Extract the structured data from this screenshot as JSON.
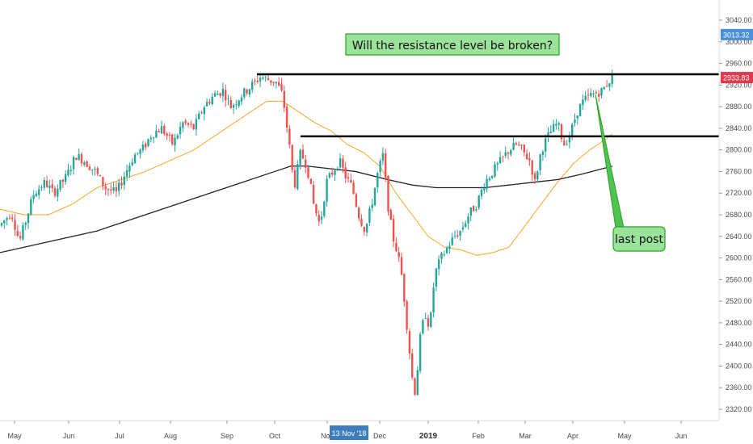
{
  "chart_data": {
    "type": "candlestick",
    "title": "",
    "ylim": [
      2290,
      3075
    ],
    "y_ticks": [
      2320,
      2360,
      2400,
      2440,
      2480,
      2520,
      2560,
      2600,
      2640,
      2680,
      2720,
      2760,
      2800,
      2840,
      2880,
      2920,
      2960,
      3000,
      3040
    ],
    "x_ticks": [
      "May",
      "Jun",
      "Jul",
      "Aug",
      "Sep",
      "Oct",
      "Nov",
      "Dec",
      "2019",
      "Feb",
      "Mar",
      "Apr",
      "May",
      "Jun"
    ],
    "crosshair_x_label": "13 Nov '18",
    "price_labels": [
      {
        "value": 3013.32,
        "text": "3013.32",
        "color": "#4a90d9"
      },
      {
        "value": 2933.83,
        "text": "2933.83",
        "color": "#e0394d"
      }
    ],
    "resistance_levels": [
      {
        "value": 2940,
        "start": "Sep 20"
      },
      {
        "value": 2825,
        "start": "Oct 15"
      }
    ],
    "annotations": [
      {
        "text": "Will the resistance level be broken?",
        "style": "green-box"
      },
      {
        "text": "last post",
        "style": "green-callout"
      }
    ],
    "series": [
      {
        "type": "ohlc",
        "color_up": "#26a69a",
        "color_down": "#ef5350"
      },
      {
        "type": "moving_average",
        "color": "#f5a623"
      },
      {
        "type": "moving_average",
        "color": "#222222"
      }
    ],
    "price_path": [
      [
        0,
        2660
      ],
      [
        14,
        2685
      ],
      [
        24,
        2630
      ],
      [
        34,
        2680
      ],
      [
        42,
        2720
      ],
      [
        56,
        2740
      ],
      [
        66,
        2720
      ],
      [
        82,
        2750
      ],
      [
        94,
        2790
      ],
      [
        104,
        2780
      ],
      [
        118,
        2760
      ],
      [
        130,
        2730
      ],
      [
        144,
        2720
      ],
      [
        156,
        2760
      ],
      [
        166,
        2790
      ],
      [
        176,
        2800
      ],
      [
        188,
        2830
      ],
      [
        200,
        2840
      ],
      [
        214,
        2810
      ],
      [
        226,
        2850
      ],
      [
        240,
        2840
      ],
      [
        252,
        2880
      ],
      [
        264,
        2900
      ],
      [
        276,
        2910
      ],
      [
        286,
        2880
      ],
      [
        298,
        2900
      ],
      [
        312,
        2920
      ],
      [
        322,
        2935
      ],
      [
        332,
        2930
      ],
      [
        342,
        2925
      ],
      [
        350,
        2900
      ],
      [
        358,
        2810
      ],
      [
        364,
        2730
      ],
      [
        372,
        2795
      ],
      [
        380,
        2770
      ],
      [
        388,
        2700
      ],
      [
        396,
        2660
      ],
      [
        404,
        2740
      ],
      [
        412,
        2760
      ],
      [
        420,
        2780
      ],
      [
        428,
        2750
      ],
      [
        436,
        2730
      ],
      [
        444,
        2680
      ],
      [
        452,
        2650
      ],
      [
        460,
        2700
      ],
      [
        468,
        2760
      ],
      [
        474,
        2790
      ],
      [
        480,
        2700
      ],
      [
        486,
        2640
      ],
      [
        492,
        2610
      ],
      [
        498,
        2560
      ],
      [
        504,
        2470
      ],
      [
        510,
        2380
      ],
      [
        514,
        2350
      ],
      [
        520,
        2450
      ],
      [
        526,
        2500
      ],
      [
        532,
        2470
      ],
      [
        538,
        2570
      ],
      [
        546,
        2600
      ],
      [
        554,
        2620
      ],
      [
        562,
        2640
      ],
      [
        570,
        2650
      ],
      [
        580,
        2680
      ],
      [
        590,
        2700
      ],
      [
        600,
        2740
      ],
      [
        610,
        2760
      ],
      [
        620,
        2780
      ],
      [
        630,
        2800
      ],
      [
        640,
        2810
      ],
      [
        648,
        2795
      ],
      [
        656,
        2780
      ],
      [
        662,
        2740
      ],
      [
        670,
        2800
      ],
      [
        680,
        2830
      ],
      [
        690,
        2850
      ],
      [
        698,
        2810
      ],
      [
        706,
        2830
      ],
      [
        714,
        2870
      ],
      [
        722,
        2890
      ],
      [
        730,
        2900
      ],
      [
        738,
        2905
      ],
      [
        746,
        2910
      ],
      [
        752,
        2925
      ],
      [
        758,
        2934
      ]
    ],
    "ma_short": [
      [
        0,
        2690
      ],
      [
        30,
        2680
      ],
      [
        60,
        2680
      ],
      [
        90,
        2700
      ],
      [
        120,
        2730
      ],
      [
        150,
        2745
      ],
      [
        180,
        2760
      ],
      [
        210,
        2780
      ],
      [
        240,
        2800
      ],
      [
        270,
        2830
      ],
      [
        300,
        2860
      ],
      [
        330,
        2890
      ],
      [
        350,
        2890
      ],
      [
        370,
        2870
      ],
      [
        390,
        2850
      ],
      [
        410,
        2835
      ],
      [
        430,
        2810
      ],
      [
        450,
        2795
      ],
      [
        470,
        2770
      ],
      [
        490,
        2720
      ],
      [
        510,
        2680
      ],
      [
        530,
        2640
      ],
      [
        550,
        2620
      ],
      [
        570,
        2615
      ],
      [
        590,
        2605
      ],
      [
        610,
        2610
      ],
      [
        630,
        2620
      ],
      [
        650,
        2660
      ],
      [
        670,
        2700
      ],
      [
        690,
        2740
      ],
      [
        710,
        2775
      ],
      [
        730,
        2800
      ],
      [
        750,
        2820
      ],
      [
        758,
        2830
      ]
    ],
    "ma_long": [
      [
        0,
        2610
      ],
      [
        60,
        2630
      ],
      [
        120,
        2650
      ],
      [
        180,
        2680
      ],
      [
        240,
        2710
      ],
      [
        300,
        2740
      ],
      [
        340,
        2760
      ],
      [
        360,
        2770
      ],
      [
        380,
        2770
      ],
      [
        410,
        2765
      ],
      [
        440,
        2760
      ],
      [
        480,
        2745
      ],
      [
        510,
        2735
      ],
      [
        540,
        2730
      ],
      [
        570,
        2730
      ],
      [
        600,
        2730
      ],
      [
        630,
        2735
      ],
      [
        660,
        2740
      ],
      [
        690,
        2745
      ],
      [
        720,
        2755
      ],
      [
        758,
        2770
      ]
    ]
  }
}
